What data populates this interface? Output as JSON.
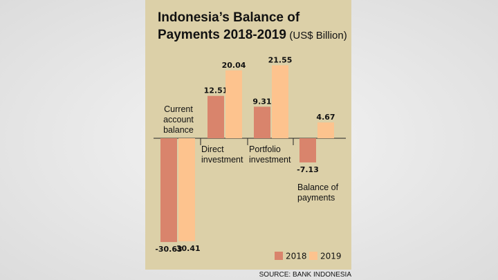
{
  "chart_data": {
    "type": "bar",
    "title": "Indonesia’s Balance of Payments 2018-2019",
    "subtitle": "(US$ Billion)",
    "categories": [
      "Current account balance",
      "Direct investment",
      "Portfolio investment",
      "Balance of payments"
    ],
    "series": [
      {
        "name": "2018",
        "color": "#d9846c",
        "values": [
          -30.63,
          12.51,
          9.31,
          -7.13
        ]
      },
      {
        "name": "2019",
        "color": "#fdc38e",
        "values": [
          -30.41,
          20.04,
          21.55,
          4.67
        ]
      }
    ],
    "source": "SOURCE: BANK INDONESIA"
  }
}
